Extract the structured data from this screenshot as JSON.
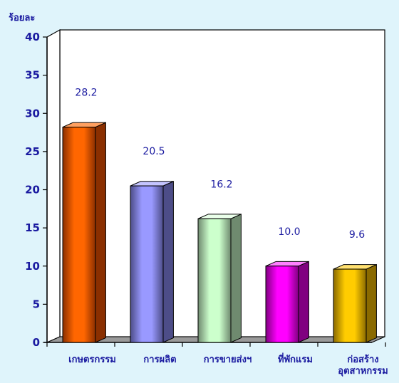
{
  "chart_data": {
    "type": "bar",
    "ylabel": "ร้อยละ",
    "ylim": [
      0,
      40
    ],
    "yticks": [
      0,
      5,
      10,
      15,
      20,
      25,
      30,
      35,
      40
    ],
    "categories": [
      [
        "เกษตรกรรม"
      ],
      [
        "การผลิต"
      ],
      [
        "การขายส่งฯ"
      ],
      [
        "ที่พักแรม"
      ],
      [
        "ก่อสร้าง",
        "อุตสาหกรรม"
      ]
    ],
    "values": [
      28.2,
      20.5,
      16.2,
      10.0,
      9.6
    ],
    "value_labels": [
      "28.2",
      "20.5",
      "16.2",
      "10.0",
      "9.6"
    ],
    "colors": [
      {
        "front": "#ff6600",
        "side": "#8a2f00",
        "top": "#ffa060"
      },
      {
        "front": "#9999ff",
        "side": "#4d4d88",
        "top": "#c4c4ff"
      },
      {
        "front": "#ccffcc",
        "side": "#6f8a6f",
        "top": "#eaffea"
      },
      {
        "front": "#ff00ff",
        "side": "#800080",
        "top": "#ff80ff"
      },
      {
        "front": "#ffcc00",
        "side": "#8a6a00",
        "top": "#ffe070"
      }
    ],
    "plot_background": "#ffffff",
    "grid": false,
    "legend": "none"
  }
}
